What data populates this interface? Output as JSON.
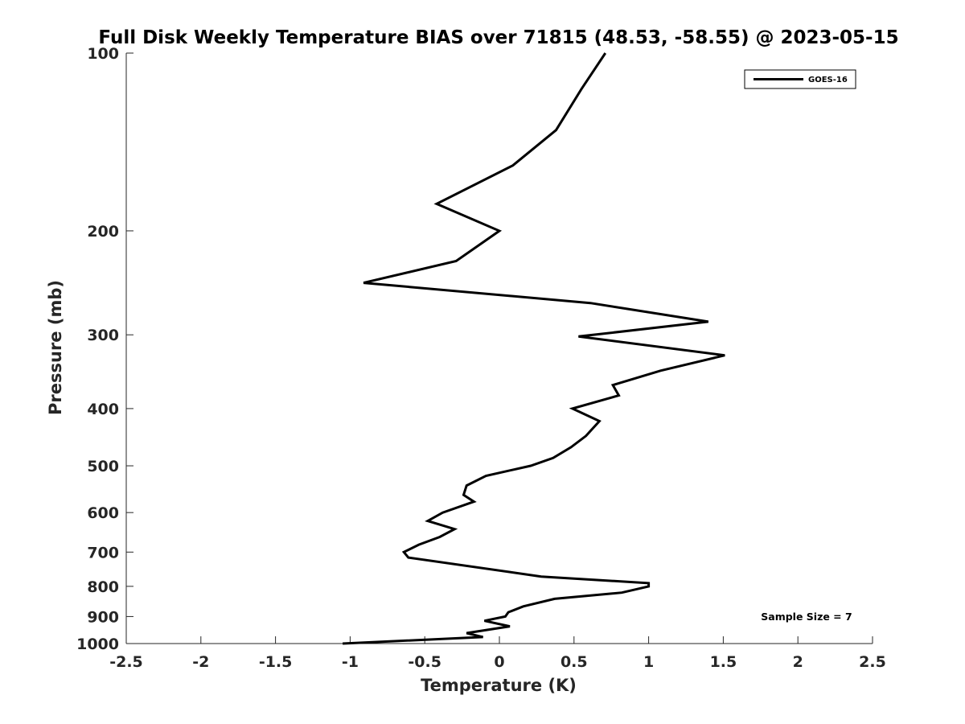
{
  "chart_data": {
    "type": "line",
    "title": "Full Disk Weekly Temperature BIAS over 71815 (48.53, -58.55) @ 2023-05-15",
    "xlabel": "Temperature (K)",
    "ylabel": "Pressure (mb)",
    "xlim": [
      -2.5,
      2.5
    ],
    "ylim": [
      100,
      1000
    ],
    "y_scale": "log",
    "y_reversed": true,
    "x_ticks": [
      "-2.5",
      "-2",
      "-1.5",
      "-1",
      "-0.5",
      "0",
      "0.5",
      "1",
      "1.5",
      "2",
      "2.5"
    ],
    "y_ticks": [
      "100",
      "200",
      "300",
      "400",
      "500",
      "600",
      "700",
      "800",
      "900",
      "1000"
    ],
    "grid": false,
    "legend_position": "top-right",
    "annotation": "Sample Size = 7",
    "line_color": "#000000",
    "series": [
      {
        "name": "GOES-16",
        "points": [
          [
            0.71,
            100
          ],
          [
            0.55,
            115
          ],
          [
            0.38,
            135
          ],
          [
            0.09,
            155
          ],
          [
            -0.42,
            180
          ],
          [
            0.0,
            200
          ],
          [
            -0.29,
            225
          ],
          [
            -0.91,
            245
          ],
          [
            0.61,
            265
          ],
          [
            1.4,
            285
          ],
          [
            0.53,
            302
          ],
          [
            1.51,
            325
          ],
          [
            1.08,
            345
          ],
          [
            0.76,
            365
          ],
          [
            0.8,
            380
          ],
          [
            0.49,
            400
          ],
          [
            0.67,
            420
          ],
          [
            0.58,
            445
          ],
          [
            0.48,
            465
          ],
          [
            0.36,
            485
          ],
          [
            0.21,
            500
          ],
          [
            -0.09,
            520
          ],
          [
            -0.22,
            540
          ],
          [
            -0.24,
            560
          ],
          [
            -0.17,
            575
          ],
          [
            -0.38,
            600
          ],
          [
            -0.48,
            620
          ],
          [
            -0.3,
            640
          ],
          [
            -0.4,
            660
          ],
          [
            -0.54,
            680
          ],
          [
            -0.64,
            700
          ],
          [
            -0.61,
            715
          ],
          [
            0.28,
            770
          ],
          [
            1.0,
            790
          ],
          [
            1.0,
            800
          ],
          [
            0.82,
            820
          ],
          [
            0.37,
            840
          ],
          [
            0.16,
            865
          ],
          [
            0.06,
            885
          ],
          [
            0.04,
            900
          ],
          [
            -0.1,
            915
          ],
          [
            0.07,
            935
          ],
          [
            -0.22,
            960
          ],
          [
            -0.11,
            975
          ],
          [
            -1.05,
            1000
          ]
        ]
      }
    ]
  }
}
